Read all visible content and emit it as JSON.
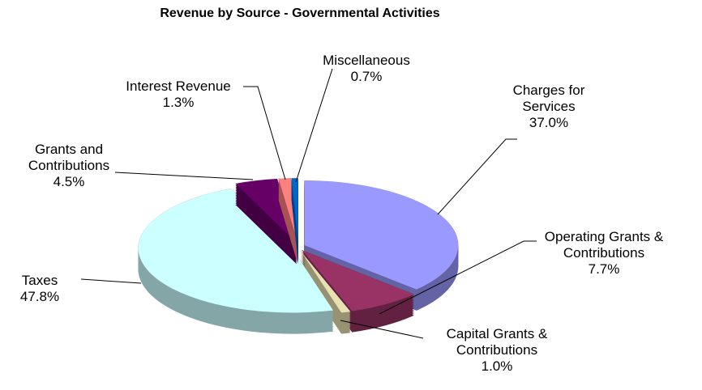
{
  "chart_data": {
    "type": "pie",
    "title": "Revenue by Source - Governmental Activities",
    "categories": [
      "Charges for Services",
      "Operating Grants & Contributions",
      "Capital Grants & Contributions",
      "Taxes",
      "Grants and Contributions",
      "Interest Revenue",
      "Miscellaneous"
    ],
    "values": [
      37.0,
      7.7,
      1.0,
      47.8,
      4.5,
      1.3,
      0.7
    ],
    "value_labels": [
      "37.0%",
      "7.7%",
      "1.0%",
      "47.8%",
      "4.5%",
      "1.3%",
      "0.7%"
    ],
    "colors": [
      "#9999ff",
      "#993366",
      "#e8e0b0",
      "#ccffff",
      "#660066",
      "#ff8080",
      "#0066cc"
    ]
  }
}
